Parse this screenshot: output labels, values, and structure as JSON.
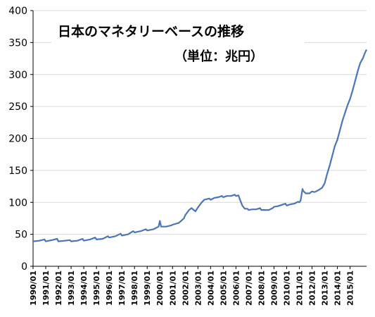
{
  "chart_data": {
    "type": "line",
    "title": "日本のマネタリーベースの推移",
    "subtitle": "（単位：兆円）",
    "ylim": [
      0,
      400
    ],
    "yticks": [
      0,
      50,
      100,
      150,
      200,
      250,
      300,
      350,
      400
    ],
    "xlim": [
      1990.0,
      2016.3
    ],
    "xtick_labels": [
      "1990/01",
      "1991/01",
      "1992/01",
      "1993/01",
      "1994/01",
      "1995/01",
      "1996/01",
      "1997/01",
      "1998/01",
      "1999/01",
      "2000/01",
      "2001/01",
      "2002/01",
      "2003/01",
      "2004/01",
      "2005/01",
      "2006/01",
      "2007/01",
      "2008/01",
      "2009/01",
      "2010/01",
      "2011/01",
      "2012/01",
      "2013/01",
      "2014/01",
      "2015/01"
    ],
    "grid": true,
    "series": [
      {
        "color": "#4a76b5",
        "points": [
          [
            1990.0,
            39
          ],
          [
            1990.5,
            40
          ],
          [
            1990.9,
            42
          ],
          [
            1991.0,
            39
          ],
          [
            1991.5,
            41
          ],
          [
            1991.9,
            43
          ],
          [
            1992.0,
            39
          ],
          [
            1992.5,
            40
          ],
          [
            1992.9,
            41
          ],
          [
            1993.0,
            39
          ],
          [
            1993.5,
            40
          ],
          [
            1993.9,
            43
          ],
          [
            1994.0,
            40
          ],
          [
            1994.5,
            42
          ],
          [
            1994.9,
            45
          ],
          [
            1995.0,
            42
          ],
          [
            1995.5,
            43
          ],
          [
            1995.9,
            47
          ],
          [
            1996.0,
            45
          ],
          [
            1996.5,
            47
          ],
          [
            1996.9,
            51
          ],
          [
            1997.0,
            48
          ],
          [
            1997.5,
            50
          ],
          [
            1997.9,
            55
          ],
          [
            1998.0,
            53
          ],
          [
            1998.5,
            55
          ],
          [
            1998.9,
            58
          ],
          [
            1999.0,
            56
          ],
          [
            1999.5,
            58
          ],
          [
            1999.9,
            62
          ],
          [
            2000.0,
            71
          ],
          [
            2000.1,
            62
          ],
          [
            2000.5,
            62
          ],
          [
            2000.9,
            64
          ],
          [
            2001.0,
            65
          ],
          [
            2001.5,
            68
          ],
          [
            2001.9,
            75
          ],
          [
            2002.0,
            80
          ],
          [
            2002.3,
            88
          ],
          [
            2002.5,
            91
          ],
          [
            2002.8,
            86
          ],
          [
            2003.0,
            92
          ],
          [
            2003.3,
            100
          ],
          [
            2003.5,
            104
          ],
          [
            2003.9,
            106
          ],
          [
            2004.0,
            104
          ],
          [
            2004.3,
            107
          ],
          [
            2004.6,
            108
          ],
          [
            2004.9,
            110
          ],
          [
            2005.0,
            108
          ],
          [
            2005.3,
            110
          ],
          [
            2005.6,
            110
          ],
          [
            2005.9,
            112
          ],
          [
            2006.0,
            110
          ],
          [
            2006.2,
            111
          ],
          [
            2006.3,
            105
          ],
          [
            2006.5,
            95
          ],
          [
            2006.7,
            90
          ],
          [
            2006.9,
            90
          ],
          [
            2007.0,
            88
          ],
          [
            2007.3,
            89
          ],
          [
            2007.6,
            89
          ],
          [
            2007.9,
            91
          ],
          [
            2008.0,
            88
          ],
          [
            2008.3,
            88
          ],
          [
            2008.6,
            88
          ],
          [
            2008.9,
            91
          ],
          [
            2009.0,
            93
          ],
          [
            2009.3,
            94
          ],
          [
            2009.6,
            96
          ],
          [
            2009.9,
            98
          ],
          [
            2010.0,
            95
          ],
          [
            2010.3,
            97
          ],
          [
            2010.6,
            98
          ],
          [
            2010.9,
            101
          ],
          [
            2011.0,
            100
          ],
          [
            2011.1,
            103
          ],
          [
            2011.2,
            115
          ],
          [
            2011.25,
            121
          ],
          [
            2011.3,
            118
          ],
          [
            2011.5,
            114
          ],
          [
            2011.8,
            114
          ],
          [
            2012.0,
            117
          ],
          [
            2012.2,
            116
          ],
          [
            2012.5,
            119
          ],
          [
            2012.8,
            123
          ],
          [
            2013.0,
            130
          ],
          [
            2013.2,
            145
          ],
          [
            2013.4,
            158
          ],
          [
            2013.6,
            173
          ],
          [
            2013.8,
            188
          ],
          [
            2014.0,
            198
          ],
          [
            2014.2,
            213
          ],
          [
            2014.4,
            228
          ],
          [
            2014.6,
            240
          ],
          [
            2014.8,
            252
          ],
          [
            2015.0,
            262
          ],
          [
            2015.2,
            275
          ],
          [
            2015.4,
            290
          ],
          [
            2015.6,
            305
          ],
          [
            2015.8,
            318
          ],
          [
            2016.0,
            325
          ],
          [
            2016.2,
            335
          ],
          [
            2016.3,
            339
          ]
        ]
      }
    ]
  }
}
